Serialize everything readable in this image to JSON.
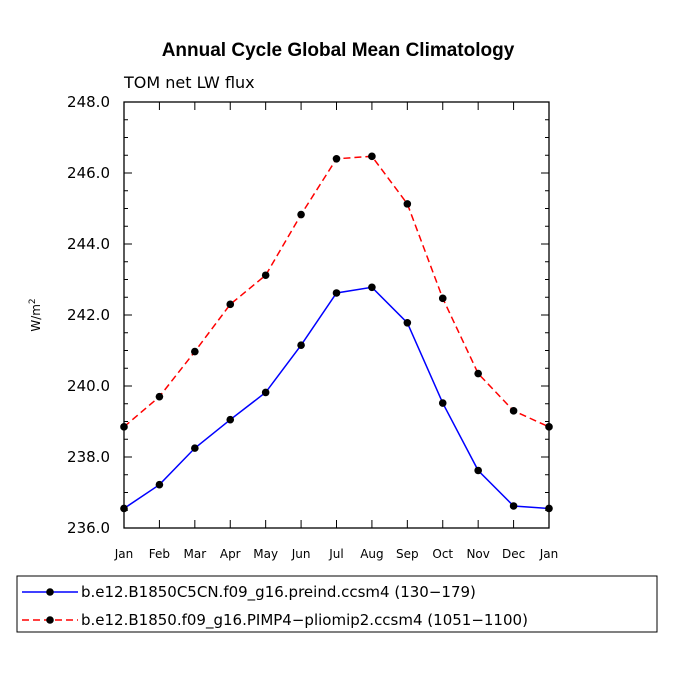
{
  "chart_data": {
    "type": "line",
    "title": "Annual Cycle Global Mean Climatology",
    "subtitle": "TOM net LW flux",
    "ylabel": "W/m",
    "ylabel_superscript": "2",
    "ylim": [
      236.0,
      248.0
    ],
    "yticks": [
      "236.0",
      "238.0",
      "240.0",
      "242.0",
      "244.0",
      "246.0",
      "248.0"
    ],
    "categories": [
      "Jan",
      "Feb",
      "Mar",
      "Apr",
      "May",
      "Jun",
      "Jul",
      "Aug",
      "Sep",
      "Oct",
      "Nov",
      "Dec",
      "Jan"
    ],
    "series": [
      {
        "name": "b.e12.B1850C5CN.f09_g16.preind.ccsm4 (130−179)",
        "color": "#0000ff",
        "style": "solid",
        "values": [
          236.55,
          237.22,
          238.25,
          239.05,
          239.82,
          241.15,
          242.62,
          242.78,
          241.78,
          239.52,
          237.62,
          236.62,
          236.55
        ]
      },
      {
        "name": "b.e12.B1850.f09_g16.PIMP4−pliomip2.ccsm4 (1051−1100)",
        "color": "#ff0000",
        "style": "dashed",
        "values": [
          238.85,
          239.7,
          240.97,
          242.3,
          243.12,
          244.83,
          246.4,
          246.47,
          245.13,
          242.47,
          240.35,
          239.3,
          238.85
        ]
      }
    ],
    "legend_position": "bottom"
  }
}
